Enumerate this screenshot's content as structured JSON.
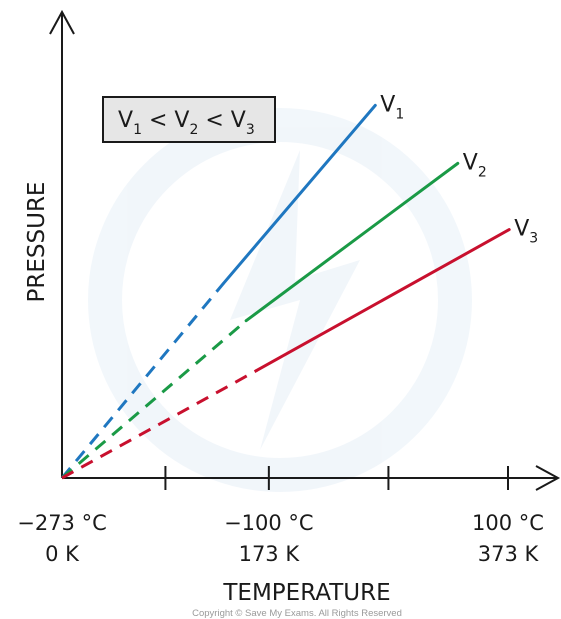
{
  "chart_data": {
    "type": "line",
    "xlabel": "TEMPERATURE",
    "ylabel": "PRESSURE",
    "x_ticks": [
      {
        "celsius": "−273 °C",
        "kelvin": "0 K",
        "value_K": 0
      },
      {
        "celsius": "",
        "kelvin": "",
        "value_K": 86.5
      },
      {
        "celsius": "−100 °C",
        "kelvin": "173 K",
        "value_K": 173
      },
      {
        "celsius": "",
        "kelvin": "",
        "value_K": 273
      },
      {
        "celsius": "100 °C",
        "kelvin": "373 K",
        "value_K": 373
      }
    ],
    "xlim": [
      0,
      400
    ],
    "ylim": [
      0,
      1
    ],
    "series": [
      {
        "name": "V",
        "sub": "1",
        "color": "#1f77c0",
        "dashed_from": [
          0,
          0
        ],
        "solid_from": [
          135,
          0.47
        ],
        "end": [
          262,
          0.9
        ]
      },
      {
        "name": "V",
        "sub": "2",
        "color": "#1a9a46",
        "dashed_from": [
          0,
          0
        ],
        "solid_from": [
          154,
          0.38
        ],
        "end": [
          331,
          0.76
        ]
      },
      {
        "name": "V",
        "sub": "3",
        "color": "#c8102e",
        "dashed_from": [
          0,
          0
        ],
        "solid_from": [
          163,
          0.26
        ],
        "end": [
          374,
          0.6
        ]
      }
    ],
    "legend": {
      "text": [
        {
          "base": "V",
          "sub": "1"
        },
        {
          "base": " < V",
          "sub": "2"
        },
        {
          "base": " < V",
          "sub": "3"
        }
      ]
    },
    "copyright": "Copyright © Save My Exams. All Rights Reserved"
  }
}
